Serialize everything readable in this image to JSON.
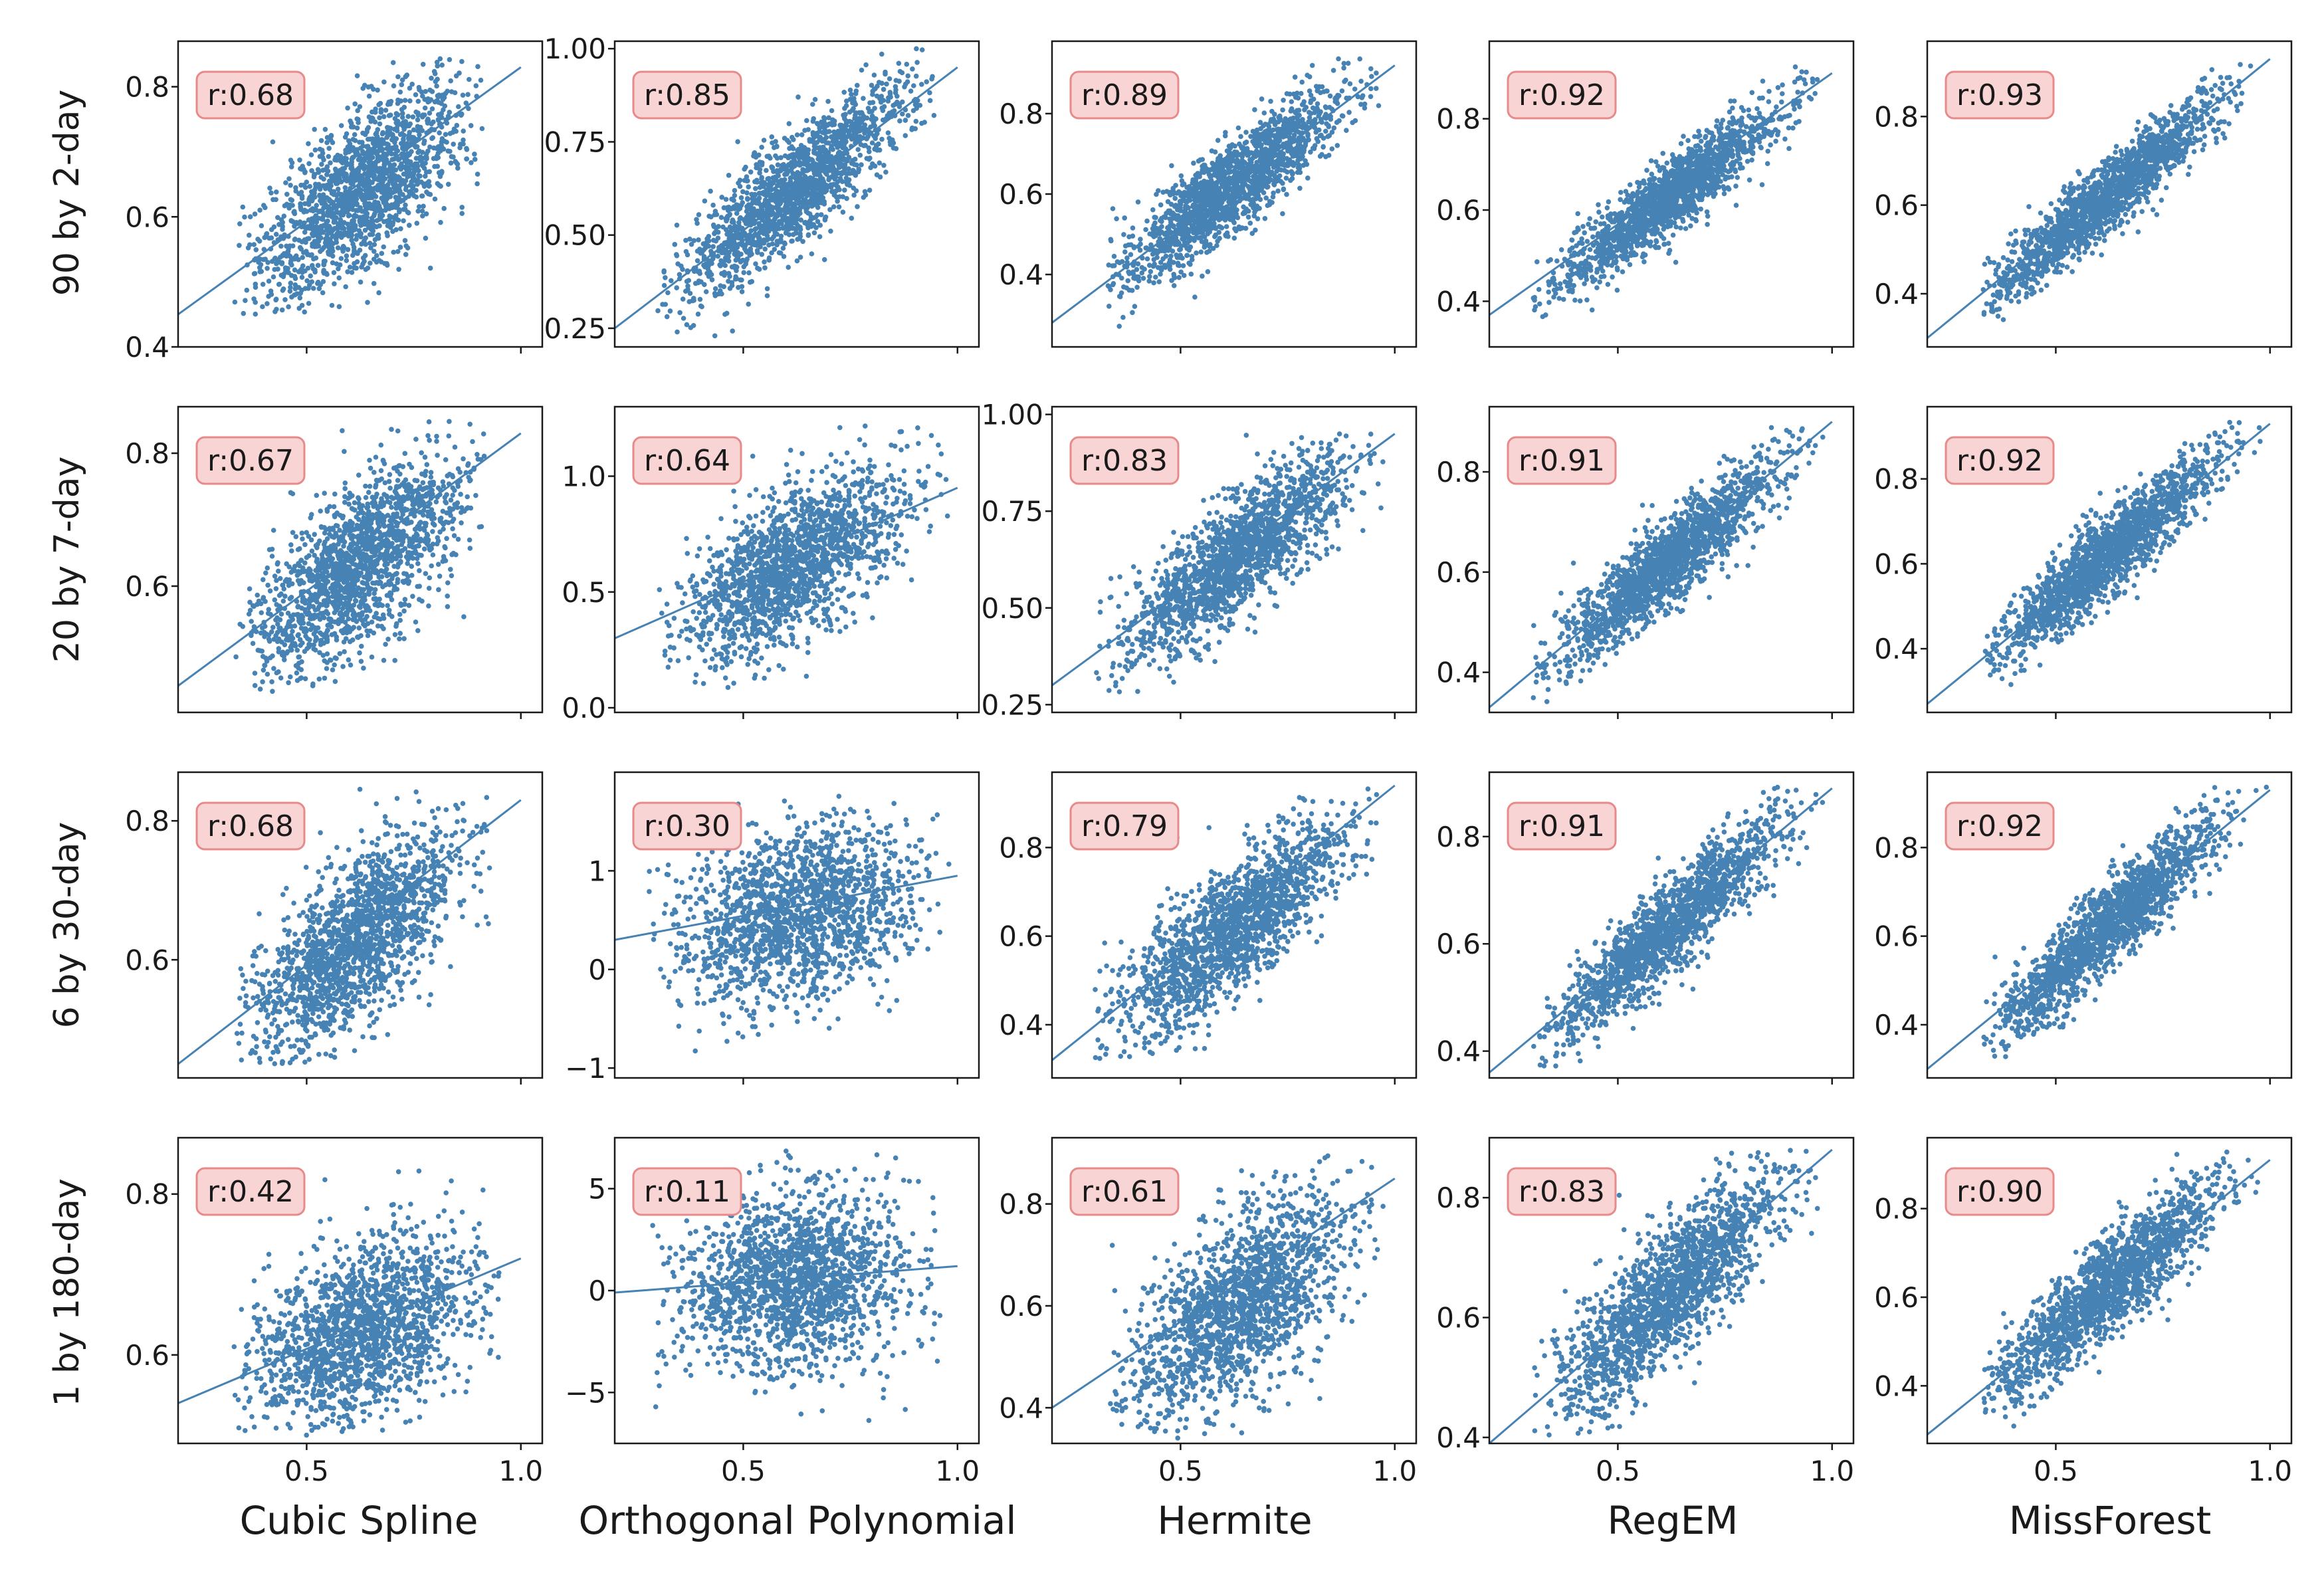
{
  "figure": {
    "row_labels": [
      "90 by 2-day",
      "20 by 7-day",
      "6 by 30-day",
      "1 by 180-day"
    ],
    "column_labels": [
      "Cubic Spline",
      "Orthogonal Polynomial",
      "Hermite",
      "RegEM",
      "MissForest"
    ],
    "marker_color": "#4682b4",
    "annotation_box_fill": "#f9d4d4",
    "annotation_box_edge": "#e88a8a"
  },
  "chart_data": [
    {
      "type": "scatter",
      "row": "90 by 2-day",
      "column": "Cubic Spline",
      "r_label": "r:0.68",
      "xlim": [
        0.2,
        1.05
      ],
      "ylim": [
        0.4,
        0.87
      ],
      "xticks": [
        0.5,
        1.0
      ],
      "xtick_labels": [
        "",
        ""
      ],
      "yticks": [
        0.4,
        0.6,
        0.8
      ],
      "ytick_labels": [
        "0.4",
        "0.6",
        "0.8"
      ],
      "trend": [
        [
          0.2,
          0.45
        ],
        [
          1.0,
          0.83
        ]
      ],
      "cloud": {
        "cx": 0.62,
        "cy": 0.64,
        "sx": 0.12,
        "sy": 0.08,
        "corr": 0.68,
        "xmin": 0.33,
        "xmax": 0.92,
        "ymin": 0.45,
        "ymax": 0.85
      }
    },
    {
      "type": "scatter",
      "row": "90 by 2-day",
      "column": "Orthogonal Polynomial",
      "r_label": "r:0.85",
      "xlim": [
        0.2,
        1.05
      ],
      "ylim": [
        0.2,
        1.02
      ],
      "xticks": [
        0.5,
        1.0
      ],
      "xtick_labels": [
        "",
        ""
      ],
      "yticks": [
        0.25,
        0.5,
        0.75,
        1.0
      ],
      "ytick_labels": [
        "0.25",
        "0.50",
        "0.75",
        "1.00"
      ],
      "trend": [
        [
          0.2,
          0.25
        ],
        [
          1.0,
          0.95
        ]
      ],
      "cloud": {
        "cx": 0.62,
        "cy": 0.62,
        "sx": 0.13,
        "sy": 0.14,
        "corr": 0.85,
        "xmin": 0.3,
        "xmax": 0.98,
        "ymin": 0.22,
        "ymax": 1.0
      }
    },
    {
      "type": "scatter",
      "row": "90 by 2-day",
      "column": "Hermite",
      "r_label": "r:0.89",
      "xlim": [
        0.2,
        1.05
      ],
      "ylim": [
        0.22,
        0.98
      ],
      "xticks": [
        0.5,
        1.0
      ],
      "xtick_labels": [
        "",
        ""
      ],
      "yticks": [
        0.4,
        0.6,
        0.8
      ],
      "ytick_labels": [
        "0.4",
        "0.6",
        "0.8"
      ],
      "trend": [
        [
          0.2,
          0.28
        ],
        [
          1.0,
          0.92
        ]
      ],
      "cloud": {
        "cx": 0.62,
        "cy": 0.62,
        "sx": 0.13,
        "sy": 0.12,
        "corr": 0.89,
        "xmin": 0.33,
        "xmax": 0.98,
        "ymin": 0.25,
        "ymax": 0.95
      }
    },
    {
      "type": "scatter",
      "row": "90 by 2-day",
      "column": "RegEM",
      "r_label": "r:0.92",
      "xlim": [
        0.2,
        1.05
      ],
      "ylim": [
        0.3,
        0.97
      ],
      "xticks": [
        0.5,
        1.0
      ],
      "xtick_labels": [
        "",
        ""
      ],
      "yticks": [
        0.4,
        0.6,
        0.8
      ],
      "ytick_labels": [
        "0.4",
        "0.6",
        "0.8"
      ],
      "trend": [
        [
          0.2,
          0.37
        ],
        [
          1.0,
          0.9
        ]
      ],
      "cloud": {
        "cx": 0.62,
        "cy": 0.63,
        "sx": 0.13,
        "sy": 0.1,
        "corr": 0.92,
        "xmin": 0.3,
        "xmax": 0.98,
        "ymin": 0.33,
        "ymax": 0.93
      }
    },
    {
      "type": "scatter",
      "row": "90 by 2-day",
      "column": "MissForest",
      "r_label": "r:0.93",
      "xlim": [
        0.2,
        1.05
      ],
      "ylim": [
        0.28,
        0.97
      ],
      "xticks": [
        0.5,
        1.0
      ],
      "xtick_labels": [
        "",
        ""
      ],
      "yticks": [
        0.4,
        0.6,
        0.8
      ],
      "ytick_labels": [
        "0.4",
        "0.6",
        "0.8"
      ],
      "trend": [
        [
          0.2,
          0.3
        ],
        [
          1.0,
          0.93
        ]
      ],
      "cloud": {
        "cx": 0.62,
        "cy": 0.62,
        "sx": 0.13,
        "sy": 0.11,
        "corr": 0.93,
        "xmin": 0.33,
        "xmax": 1.0,
        "ymin": 0.32,
        "ymax": 0.93
      }
    },
    {
      "type": "scatter",
      "row": "20 by 7-day",
      "column": "Cubic Spline",
      "r_label": "r:0.67",
      "xlim": [
        0.2,
        1.05
      ],
      "ylim": [
        0.41,
        0.87
      ],
      "xticks": [
        0.5,
        1.0
      ],
      "xtick_labels": [
        "",
        ""
      ],
      "yticks": [
        0.6,
        0.8
      ],
      "ytick_labels": [
        "0.6",
        "0.8"
      ],
      "trend": [
        [
          0.2,
          0.45
        ],
        [
          1.0,
          0.83
        ]
      ],
      "cloud": {
        "cx": 0.62,
        "cy": 0.63,
        "sx": 0.12,
        "sy": 0.08,
        "corr": 0.67,
        "xmin": 0.33,
        "xmax": 0.92,
        "ymin": 0.44,
        "ymax": 0.85
      }
    },
    {
      "type": "scatter",
      "row": "20 by 7-day",
      "column": "Orthogonal Polynomial",
      "r_label": "r:0.64",
      "xlim": [
        0.2,
        1.05
      ],
      "ylim": [
        -0.02,
        1.3
      ],
      "xticks": [
        0.5,
        1.0
      ],
      "xtick_labels": [
        "",
        ""
      ],
      "yticks": [
        0.0,
        0.5,
        1.0
      ],
      "ytick_labels": [
        "0.0",
        "0.5",
        "1.0"
      ],
      "trend": [
        [
          0.2,
          0.3
        ],
        [
          1.0,
          0.95
        ]
      ],
      "cloud": {
        "cx": 0.62,
        "cy": 0.62,
        "sx": 0.13,
        "sy": 0.2,
        "corr": 0.64,
        "xmin": 0.3,
        "xmax": 0.98,
        "ymin": 0.08,
        "ymax": 1.22
      }
    },
    {
      "type": "scatter",
      "row": "20 by 7-day",
      "column": "Hermite",
      "r_label": "r:0.83",
      "xlim": [
        0.2,
        1.05
      ],
      "ylim": [
        0.23,
        1.02
      ],
      "xticks": [
        0.5,
        1.0
      ],
      "xtick_labels": [
        "",
        ""
      ],
      "yticks": [
        0.25,
        0.5,
        0.75,
        1.0
      ],
      "ytick_labels": [
        "0.25",
        "0.50",
        "0.75",
        "1.00"
      ],
      "trend": [
        [
          0.2,
          0.3
        ],
        [
          1.0,
          0.95
        ]
      ],
      "cloud": {
        "cx": 0.62,
        "cy": 0.62,
        "sx": 0.13,
        "sy": 0.13,
        "corr": 0.83,
        "xmin": 0.3,
        "xmax": 0.98,
        "ymin": 0.27,
        "ymax": 0.97
      }
    },
    {
      "type": "scatter",
      "row": "20 by 7-day",
      "column": "RegEM",
      "r_label": "r:0.91",
      "xlim": [
        0.2,
        1.05
      ],
      "ylim": [
        0.32,
        0.93
      ],
      "xticks": [
        0.5,
        1.0
      ],
      "xtick_labels": [
        "",
        ""
      ],
      "yticks": [
        0.4,
        0.6,
        0.8
      ],
      "ytick_labels": [
        "0.4",
        "0.6",
        "0.8"
      ],
      "trend": [
        [
          0.2,
          0.33
        ],
        [
          1.0,
          0.9
        ]
      ],
      "cloud": {
        "cx": 0.62,
        "cy": 0.62,
        "sx": 0.13,
        "sy": 0.1,
        "corr": 0.91,
        "xmin": 0.3,
        "xmax": 0.98,
        "ymin": 0.34,
        "ymax": 0.91
      }
    },
    {
      "type": "scatter",
      "row": "20 by 7-day",
      "column": "MissForest",
      "r_label": "r:0.92",
      "xlim": [
        0.2,
        1.05
      ],
      "ylim": [
        0.25,
        0.97
      ],
      "xticks": [
        0.5,
        1.0
      ],
      "xtick_labels": [
        "",
        ""
      ],
      "yticks": [
        0.4,
        0.6,
        0.8
      ],
      "ytick_labels": [
        "0.4",
        "0.6",
        "0.8"
      ],
      "trend": [
        [
          0.2,
          0.27
        ],
        [
          1.0,
          0.93
        ]
      ],
      "cloud": {
        "cx": 0.62,
        "cy": 0.62,
        "sx": 0.13,
        "sy": 0.12,
        "corr": 0.92,
        "xmin": 0.33,
        "xmax": 1.0,
        "ymin": 0.3,
        "ymax": 0.94
      }
    },
    {
      "type": "scatter",
      "row": "6 by 30-day",
      "column": "Cubic Spline",
      "r_label": "r:0.68",
      "xlim": [
        0.2,
        1.05
      ],
      "ylim": [
        0.43,
        0.87
      ],
      "xticks": [
        0.5,
        1.0
      ],
      "xtick_labels": [
        "",
        ""
      ],
      "yticks": [
        0.6,
        0.8
      ],
      "ytick_labels": [
        "0.6",
        "0.8"
      ],
      "trend": [
        [
          0.2,
          0.45
        ],
        [
          1.0,
          0.83
        ]
      ],
      "cloud": {
        "cx": 0.62,
        "cy": 0.63,
        "sx": 0.12,
        "sy": 0.08,
        "corr": 0.68,
        "xmin": 0.33,
        "xmax": 0.93,
        "ymin": 0.45,
        "ymax": 0.85
      }
    },
    {
      "type": "scatter",
      "row": "6 by 30-day",
      "column": "Orthogonal Polynomial",
      "r_label": "r:0.30",
      "xlim": [
        0.2,
        1.05
      ],
      "ylim": [
        -1.1,
        2.0
      ],
      "xticks": [
        0.5,
        1.0
      ],
      "xtick_labels": [
        "",
        ""
      ],
      "yticks": [
        -1,
        0,
        1
      ],
      "ytick_labels": [
        "−1",
        "0",
        "1"
      ],
      "trend": [
        [
          0.2,
          0.3
        ],
        [
          1.0,
          0.95
        ]
      ],
      "cloud": {
        "cx": 0.62,
        "cy": 0.55,
        "sx": 0.14,
        "sy": 0.45,
        "corr": 0.3,
        "xmin": 0.28,
        "xmax": 0.98,
        "ymin": -0.9,
        "ymax": 1.8
      }
    },
    {
      "type": "scatter",
      "row": "6 by 30-day",
      "column": "Hermite",
      "r_label": "r:0.79",
      "xlim": [
        0.2,
        1.05
      ],
      "ylim": [
        0.28,
        0.97
      ],
      "xticks": [
        0.5,
        1.0
      ],
      "xtick_labels": [
        "",
        ""
      ],
      "yticks": [
        0.4,
        0.6,
        0.8
      ],
      "ytick_labels": [
        "0.4",
        "0.6",
        "0.8"
      ],
      "trend": [
        [
          0.2,
          0.32
        ],
        [
          1.0,
          0.94
        ]
      ],
      "cloud": {
        "cx": 0.62,
        "cy": 0.62,
        "sx": 0.13,
        "sy": 0.12,
        "corr": 0.79,
        "xmin": 0.3,
        "xmax": 0.98,
        "ymin": 0.31,
        "ymax": 0.94
      }
    },
    {
      "type": "scatter",
      "row": "6 by 30-day",
      "column": "RegEM",
      "r_label": "r:0.91",
      "xlim": [
        0.2,
        1.05
      ],
      "ylim": [
        0.35,
        0.92
      ],
      "xticks": [
        0.5,
        1.0
      ],
      "xtick_labels": [
        "",
        ""
      ],
      "yticks": [
        0.4,
        0.6,
        0.8
      ],
      "ytick_labels": [
        "0.4",
        "0.6",
        "0.8"
      ],
      "trend": [
        [
          0.2,
          0.36
        ],
        [
          1.0,
          0.89
        ]
      ],
      "cloud": {
        "cx": 0.62,
        "cy": 0.63,
        "sx": 0.13,
        "sy": 0.1,
        "corr": 0.91,
        "xmin": 0.3,
        "xmax": 0.98,
        "ymin": 0.37,
        "ymax": 0.9
      }
    },
    {
      "type": "scatter",
      "row": "6 by 30-day",
      "column": "MissForest",
      "r_label": "r:0.92",
      "xlim": [
        0.2,
        1.05
      ],
      "ylim": [
        0.28,
        0.97
      ],
      "xticks": [
        0.5,
        1.0
      ],
      "xtick_labels": [
        "",
        ""
      ],
      "yticks": [
        0.4,
        0.6,
        0.8
      ],
      "ytick_labels": [
        "0.4",
        "0.6",
        "0.8"
      ],
      "trend": [
        [
          0.2,
          0.3
        ],
        [
          1.0,
          0.93
        ]
      ],
      "cloud": {
        "cx": 0.62,
        "cy": 0.62,
        "sx": 0.13,
        "sy": 0.12,
        "corr": 0.92,
        "xmin": 0.33,
        "xmax": 1.0,
        "ymin": 0.32,
        "ymax": 0.94
      }
    },
    {
      "type": "scatter",
      "row": "1 by 180-day",
      "column": "Cubic Spline",
      "r_label": "r:0.42",
      "xlim": [
        0.2,
        1.05
      ],
      "ylim": [
        0.49,
        0.87
      ],
      "xticks": [
        0.5,
        1.0
      ],
      "xtick_labels": [
        "0.5",
        "1.0"
      ],
      "yticks": [
        0.6,
        0.8
      ],
      "ytick_labels": [
        "0.6",
        "0.8"
      ],
      "trend": [
        [
          0.2,
          0.54
        ],
        [
          1.0,
          0.72
        ]
      ],
      "cloud": {
        "cx": 0.63,
        "cy": 0.63,
        "sx": 0.13,
        "sy": 0.06,
        "corr": 0.42,
        "xmin": 0.33,
        "xmax": 0.95,
        "ymin": 0.5,
        "ymax": 0.85
      }
    },
    {
      "type": "scatter",
      "row": "1 by 180-day",
      "column": "Orthogonal Polynomial",
      "r_label": "r:0.11",
      "xlim": [
        0.2,
        1.05
      ],
      "ylim": [
        -7.5,
        7.5
      ],
      "xticks": [
        0.5,
        1.0
      ],
      "xtick_labels": [
        "0.5",
        "1.0"
      ],
      "yticks": [
        -5,
        0,
        5
      ],
      "ytick_labels": [
        "−5",
        "0",
        "5"
      ],
      "trend": [
        [
          0.2,
          -0.1
        ],
        [
          1.0,
          1.2
        ]
      ],
      "cloud": {
        "cx": 0.62,
        "cy": 0.5,
        "sx": 0.13,
        "sy": 2.2,
        "corr": 0.11,
        "xmin": 0.28,
        "xmax": 0.98,
        "ymin": -6.5,
        "ymax": 7.2
      }
    },
    {
      "type": "scatter",
      "row": "1 by 180-day",
      "column": "Hermite",
      "r_label": "r:0.61",
      "xlim": [
        0.2,
        1.05
      ],
      "ylim": [
        0.33,
        0.93
      ],
      "xticks": [
        0.5,
        1.0
      ],
      "xtick_labels": [
        "0.5",
        "1.0"
      ],
      "yticks": [
        0.4,
        0.6,
        0.8
      ],
      "ytick_labels": [
        "0.4",
        "0.6",
        "0.8"
      ],
      "trend": [
        [
          0.2,
          0.4
        ],
        [
          1.0,
          0.85
        ]
      ],
      "cloud": {
        "cx": 0.64,
        "cy": 0.6,
        "sx": 0.13,
        "sy": 0.11,
        "corr": 0.61,
        "xmin": 0.33,
        "xmax": 0.98,
        "ymin": 0.34,
        "ymax": 0.9
      }
    },
    {
      "type": "scatter",
      "row": "1 by 180-day",
      "column": "RegEM",
      "r_label": "r:0.83",
      "xlim": [
        0.2,
        1.05
      ],
      "ylim": [
        0.39,
        0.9
      ],
      "xticks": [
        0.5,
        1.0
      ],
      "xtick_labels": [
        "0.5",
        "1.0"
      ],
      "yticks": [
        0.4,
        0.6,
        0.8
      ],
      "ytick_labels": [
        "0.4",
        "0.6",
        "0.8"
      ],
      "trend": [
        [
          0.2,
          0.39
        ],
        [
          1.0,
          0.88
        ]
      ],
      "cloud": {
        "cx": 0.62,
        "cy": 0.64,
        "sx": 0.13,
        "sy": 0.1,
        "corr": 0.83,
        "xmin": 0.3,
        "xmax": 0.98,
        "ymin": 0.4,
        "ymax": 0.88
      }
    },
    {
      "type": "scatter",
      "row": "1 by 180-day",
      "column": "MissForest",
      "r_label": "r:0.90",
      "xlim": [
        0.2,
        1.05
      ],
      "ylim": [
        0.27,
        0.96
      ],
      "xticks": [
        0.5,
        1.0
      ],
      "xtick_labels": [
        "0.5",
        "1.0"
      ],
      "yticks": [
        0.4,
        0.6,
        0.8
      ],
      "ytick_labels": [
        "0.4",
        "0.6",
        "0.8"
      ],
      "trend": [
        [
          0.2,
          0.29
        ],
        [
          1.0,
          0.91
        ]
      ],
      "cloud": {
        "cx": 0.62,
        "cy": 0.62,
        "sx": 0.13,
        "sy": 0.12,
        "corr": 0.9,
        "xmin": 0.33,
        "xmax": 1.0,
        "ymin": 0.3,
        "ymax": 0.93
      }
    }
  ]
}
